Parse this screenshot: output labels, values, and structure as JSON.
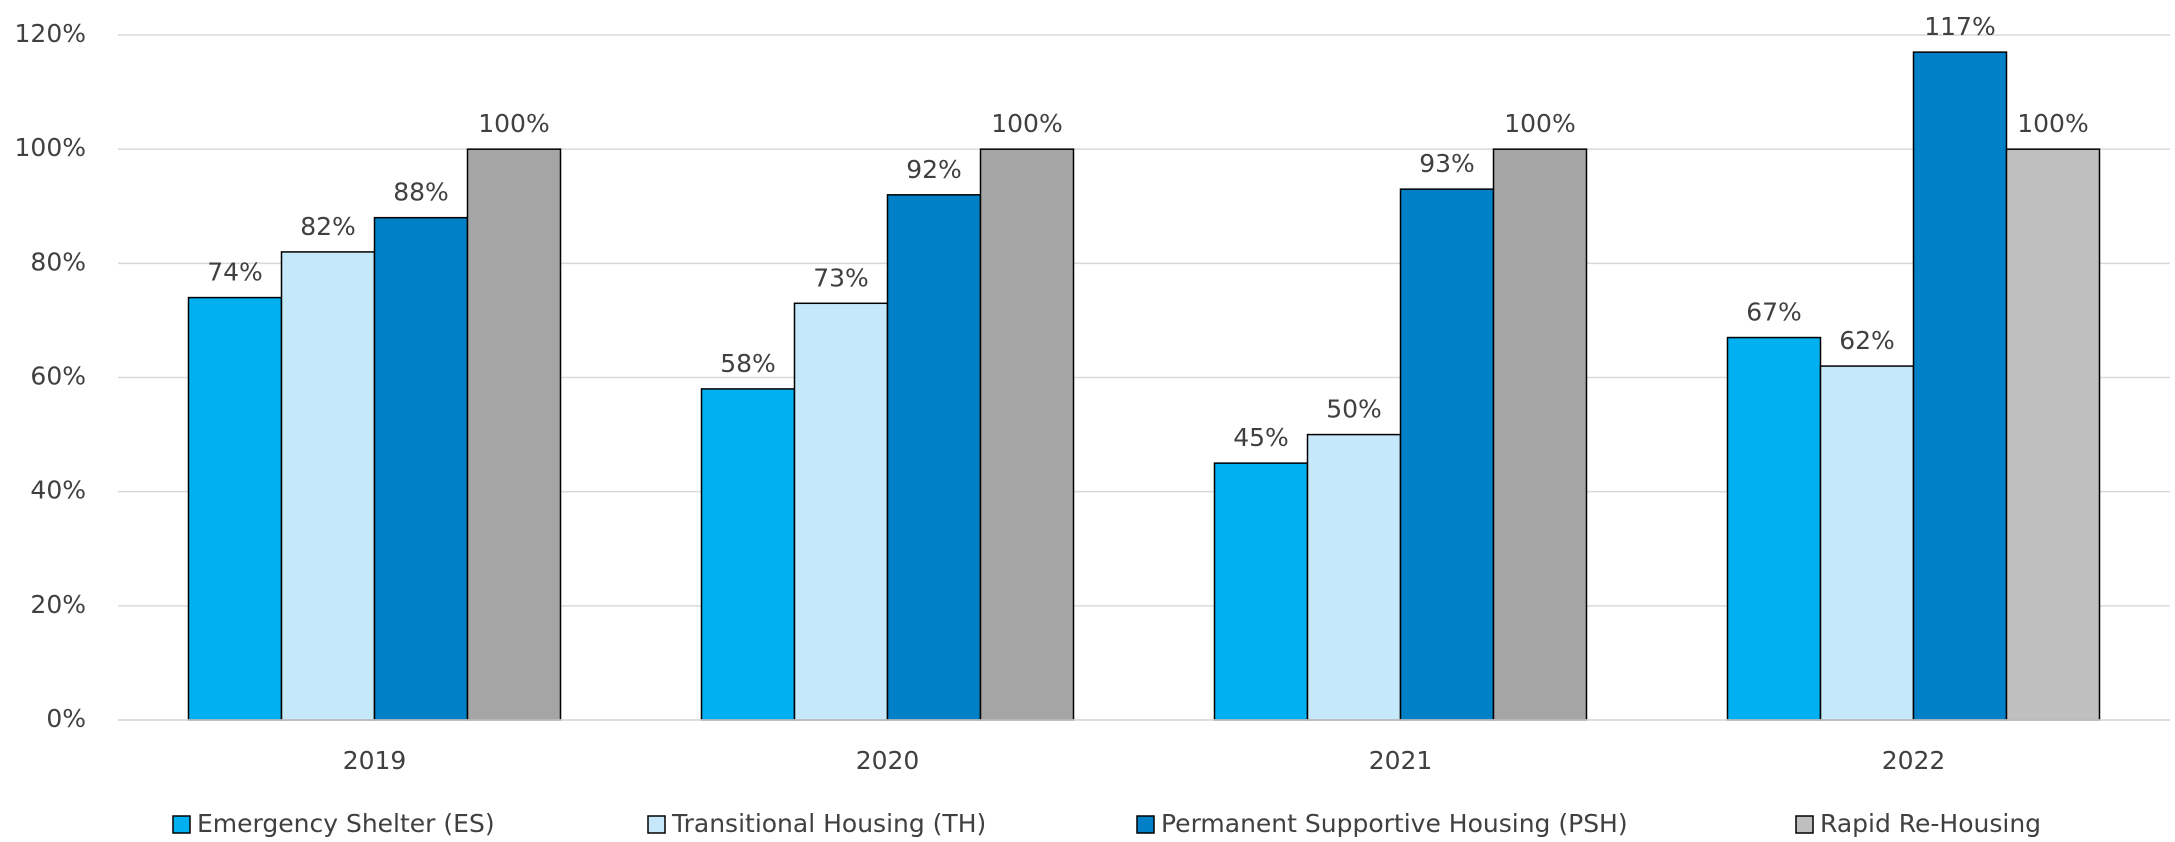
{
  "chart_data": {
    "type": "bar",
    "categories": [
      "2019",
      "2020",
      "2021",
      "2022"
    ],
    "series": [
      {
        "name": "Emergency Shelter (ES)",
        "color": "#00b0f0",
        "values": [
          74,
          58,
          45,
          67
        ],
        "value_labels": [
          "74%",
          "58%",
          "45%",
          "67%"
        ]
      },
      {
        "name": "Transitional Housing (TH)",
        "color": "#c5e9fb",
        "values": [
          82,
          73,
          50,
          62
        ],
        "value_labels": [
          "82%",
          "73%",
          "50%",
          "62%"
        ]
      },
      {
        "name": "Permanent Supportive Housing (PSH)",
        "color": "#0080c6",
        "values": [
          88,
          92,
          93,
          117
        ],
        "value_labels": [
          "88%",
          "92%",
          "93%",
          "117%"
        ]
      },
      {
        "name": "Rapid Re-Housing",
        "color": "#bfbfbf",
        "colors": [
          "#a5a5a5",
          "#a5a5a5",
          "#a5a5a5",
          "#bfbfbf"
        ],
        "values": [
          100,
          100,
          100,
          100
        ],
        "value_labels": [
          "100%",
          "100%",
          "100%",
          "100%"
        ]
      }
    ],
    "ylim": [
      0,
      120
    ],
    "yticks": [
      {
        "value": 0,
        "label": "0%"
      },
      {
        "value": 20,
        "label": "20%"
      },
      {
        "value": 40,
        "label": "40%"
      },
      {
        "value": 60,
        "label": "60%"
      },
      {
        "value": 80,
        "label": "80%"
      },
      {
        "value": 100,
        "label": "100%"
      },
      {
        "value": 120,
        "label": "120%"
      }
    ],
    "grid": true,
    "legend": "bottom"
  }
}
